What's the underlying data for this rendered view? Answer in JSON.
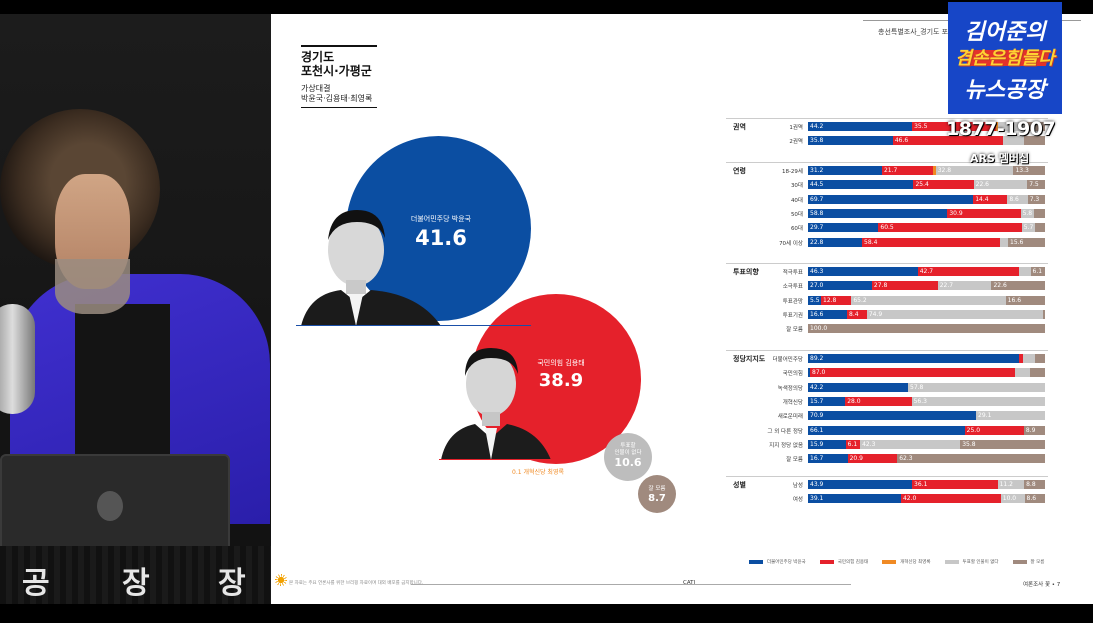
{
  "studio": {
    "banner_chars": [
      "공",
      "장",
      "장"
    ]
  },
  "overlay": {
    "logo_line1": "김어준의",
    "logo_line2": "겸손은힘들다",
    "logo_line3": "뉴스공장",
    "phone": "1877-1907",
    "phone_sub": "ARS 멤버십"
  },
  "document": {
    "page_header": "총선특별조사_경기도 포천",
    "region_line1": "경기도",
    "region_line2": "포천시·가평군",
    "matchup_title": "가상대결",
    "matchup_names": "박윤국·김용태·최영록",
    "candidates": [
      {
        "label": "더불어민주당 박윤국",
        "value": "41.6",
        "color": "#0b4ea2"
      },
      {
        "label": "국민의힘 김용태",
        "value": "38.9",
        "color": "#e5212b"
      }
    ],
    "third_party_note": "0.1 개혁신당 최영록",
    "undecided_label_l1": "투표할",
    "undecided_label_l2": "인물이 없다",
    "undecided_value": "10.6",
    "dontknow_label": "잘 모름",
    "dontknow_value": "8.7",
    "footer_note": "본 자료는 주요 언론사를 위한 브리핑 자료이며 대외 배포를 금지합니다.",
    "footer_cati": "CATI",
    "footer_right": "여론조사 꽃 • 7"
  },
  "colors": {
    "dem": "#0b4ea2",
    "ppp": "#e5212b",
    "reform": "#f08a24",
    "none": "#c7c7c7",
    "dontknow": "#a08a7e"
  },
  "legend": [
    {
      "label": "더불어민주당 박윤국",
      "key": "dem"
    },
    {
      "label": "국민의힘 김용태",
      "key": "ppp"
    },
    {
      "label": "개혁신당 최영록",
      "key": "reform"
    },
    {
      "label": "투표할 인물이 없다",
      "key": "none"
    },
    {
      "label": "잘 모름",
      "key": "dontknow"
    }
  ],
  "chart_data": {
    "type": "bar",
    "stacked": true,
    "series_order": [
      "dem",
      "ppp",
      "reform",
      "none",
      "dontknow"
    ],
    "groups": [
      {
        "name": "권역",
        "rows": [
          {
            "label": "1권역",
            "values": [
              44.2,
              35.5,
              0.2,
              11.6,
              8.5
            ],
            "shown": [
              "44.2",
              "35.5",
              "",
              "",
              ""
            ]
          },
          {
            "label": "2권역",
            "values": [
              35.8,
              46.6,
              0.0,
              8.8,
              8.8
            ],
            "shown": [
              "35.8",
              "46.6",
              "",
              "",
              ""
            ]
          }
        ]
      },
      {
        "name": "연령",
        "rows": [
          {
            "label": "18-29세",
            "values": [
              31.2,
              21.7,
              1.0,
              32.8,
              13.3
            ],
            "shown": [
              "31.2",
              "21.7",
              "",
              "32.8",
              "13.3"
            ]
          },
          {
            "label": "30대",
            "values": [
              44.5,
              25.4,
              0.0,
              22.6,
              7.5
            ],
            "shown": [
              "44.5",
              "25.4",
              "",
              "22.6",
              "7.5"
            ]
          },
          {
            "label": "40대",
            "values": [
              69.7,
              14.4,
              0.0,
              8.6,
              7.3
            ],
            "shown": [
              "69.7",
              "14.4",
              "",
              "8.6",
              "7.3"
            ]
          },
          {
            "label": "50대",
            "values": [
              58.8,
              30.9,
              0.0,
              5.8,
              4.5
            ],
            "shown": [
              "58.8",
              "30.9",
              "",
              "5.8",
              ""
            ]
          },
          {
            "label": "60대",
            "values": [
              29.7,
              60.5,
              0.0,
              5.7,
              4.1
            ],
            "shown": [
              "29.7",
              "60.5",
              "",
              "5.7",
              ""
            ]
          },
          {
            "label": "70세 이상",
            "values": [
              22.8,
              58.4,
              0.0,
              3.2,
              15.6
            ],
            "shown": [
              "22.8",
              "58.4",
              "",
              "",
              "15.6"
            ]
          }
        ]
      },
      {
        "name": "투표의향",
        "rows": [
          {
            "label": "적극투표",
            "values": [
              46.3,
              42.7,
              0.0,
              4.9,
              6.1
            ],
            "shown": [
              "46.3",
              "42.7",
              "",
              "",
              "6.1"
            ]
          },
          {
            "label": "소극투표",
            "values": [
              27.0,
              27.8,
              0.0,
              22.7,
              22.6
            ],
            "shown": [
              "27.0",
              "27.8",
              "",
              "22.7",
              "22.6"
            ]
          },
          {
            "label": "투표관망",
            "values": [
              5.5,
              12.8,
              0.0,
              65.2,
              16.6
            ],
            "shown": [
              "5.5",
              "12.8",
              "",
              "65.2",
              "16.6"
            ]
          },
          {
            "label": "투표기권",
            "values": [
              16.6,
              8.4,
              0.0,
              74.9,
              0.1
            ],
            "shown": [
              "16.6",
              "8.4",
              "",
              "74.9",
              ""
            ]
          },
          {
            "label": "잘 모름",
            "values": [
              0,
              0,
              0,
              0,
              100.0
            ],
            "shown": [
              "",
              "",
              "",
              "",
              "100.0"
            ]
          }
        ]
      },
      {
        "name": "정당지지도",
        "rows": [
          {
            "label": "더불어민주당",
            "values": [
              89.2,
              1.5,
              0.0,
              5.0,
              4.3
            ],
            "shown": [
              "89.2",
              "",
              "",
              "",
              ""
            ]
          },
          {
            "label": "국민의힘",
            "values": [
              0.5,
              87.0,
              0.0,
              6.0,
              6.5
            ],
            "shown": [
              "",
              "87.0",
              "",
              "",
              ""
            ]
          },
          {
            "label": "녹색정의당",
            "values": [
              42.2,
              0.0,
              0.0,
              57.8,
              0.0
            ],
            "shown": [
              "42.2",
              "",
              "",
              "57.8",
              ""
            ]
          },
          {
            "label": "개혁신당",
            "values": [
              15.7,
              28.0,
              0.0,
              56.3,
              0.0
            ],
            "shown": [
              "15.7",
              "28.0",
              "",
              "56.3",
              ""
            ]
          },
          {
            "label": "새로운미래",
            "values": [
              70.9,
              0.0,
              0.0,
              29.1,
              0.0
            ],
            "shown": [
              "70.9",
              "",
              "",
              "29.1",
              ""
            ]
          },
          {
            "label": "그 외 다른 정당",
            "values": [
              66.1,
              25.0,
              0.0,
              0.0,
              8.9
            ],
            "shown": [
              "66.1",
              "25.0",
              "",
              "",
              "8.9"
            ]
          },
          {
            "label": "지지 정당 없음",
            "values": [
              15.9,
              6.1,
              0.0,
              42.3,
              35.8
            ],
            "shown": [
              "15.9",
              "6.1",
              "",
              "42.3",
              "35.8"
            ]
          },
          {
            "label": "잘 모름",
            "values": [
              16.7,
              20.9,
              0.0,
              0.0,
              62.3
            ],
            "shown": [
              "16.7",
              "20.9",
              "",
              "",
              "62.3"
            ]
          }
        ]
      },
      {
        "name": "성별",
        "rows": [
          {
            "label": "남성",
            "values": [
              43.9,
              36.1,
              0.0,
              11.2,
              8.8
            ],
            "shown": [
              "43.9",
              "36.1",
              "",
              "11.2",
              "8.8"
            ]
          },
          {
            "label": "여성",
            "values": [
              39.1,
              42.0,
              0.0,
              10.0,
              8.6
            ],
            "shown": [
              "39.1",
              "42.0",
              "",
              "10.0",
              "8.6"
            ]
          }
        ]
      }
    ]
  }
}
